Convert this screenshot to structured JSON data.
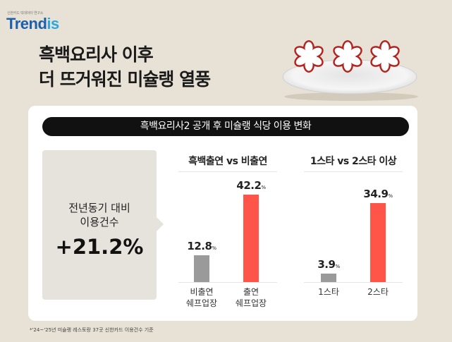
{
  "logo": {
    "subtitle": "신한카드 빅데이터 연구소",
    "name_main": "Trend",
    "name_accent": "is"
  },
  "headline": [
    "흑백요리사 이후",
    "더 뜨거워진 미슐랭 열풍"
  ],
  "banner": "흑백요리사2 공개 후 미슐랭 식당 이용 변화",
  "kpi": {
    "label": [
      "전년동기 대비",
      "이용건수"
    ],
    "value": "+21.2%"
  },
  "colors": {
    "highlight": "#ff5548",
    "neutral": "#9a9a9a",
    "star": "#b3241f"
  },
  "chart_data": [
    {
      "type": "bar",
      "title": "흑백출연 vs 비출연",
      "categories": [
        "비출연\n쉐프업장",
        "출연\n쉐프업장"
      ],
      "values": [
        12.8,
        42.2
      ],
      "unit": "%",
      "labels": [
        "12.8",
        "42.2"
      ]
    },
    {
      "type": "bar",
      "title": "1스타 vs 2스타 이상",
      "categories": [
        "1스타",
        "2스타"
      ],
      "values": [
        3.9,
        34.9
      ],
      "unit": "%",
      "labels": [
        "3.9",
        "34.9"
      ]
    }
  ],
  "footnote": "*'24~'25년 미슐랭 레스토랑 37곳 신한카드 이용건수 기준"
}
